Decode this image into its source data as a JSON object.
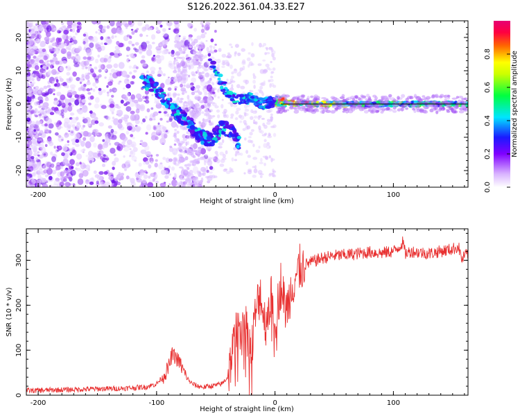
{
  "title": "S126.2022.361.04.33.E27",
  "chart_data": [
    {
      "type": "heatmap",
      "xlabel": "Height of straight line (km)",
      "ylabel": "Frequency (Hz)",
      "xlim": [
        -210,
        163
      ],
      "ylim": [
        -25,
        25
      ],
      "xticks": [
        -200,
        -100,
        0,
        100
      ],
      "yticks": [
        -20,
        -10,
        0,
        10,
        20
      ],
      "colorbar": {
        "label": "Normalized spectral amplitude",
        "range": [
          0,
          1
        ],
        "ticks": [
          "0.0",
          "0.2",
          "0.4",
          "0.6",
          "0.8"
        ],
        "colormap": [
          "#f5f5f5",
          "#cc99ff",
          "#7b00e0",
          "#1a1aff",
          "#00e5ff",
          "#00ff40",
          "#ffff00",
          "#ff6600",
          "#ff0040",
          "#e60073"
        ]
      },
      "signal_track": [
        {
          "x": -115,
          "f": 7
        },
        {
          "x": -105,
          "f": 6
        },
        {
          "x": -95,
          "f": 2
        },
        {
          "x": -85,
          "f": -2
        },
        {
          "x": -75,
          "f": -5
        },
        {
          "x": -65,
          "f": -9
        },
        {
          "x": -55,
          "f": -11
        },
        {
          "x": -45,
          "f": -7
        },
        {
          "x": -35,
          "f": -9
        },
        {
          "x": -30,
          "f": -12
        }
      ],
      "descending_track": [
        {
          "x": -55,
          "f": 13
        },
        {
          "x": -50,
          "f": 11
        },
        {
          "x": -45,
          "f": 6
        },
        {
          "x": -38,
          "f": 2
        },
        {
          "x": -30,
          "f": 1
        },
        {
          "x": -20,
          "f": 2
        },
        {
          "x": -10,
          "f": 0
        },
        {
          "x": 0,
          "f": 1
        },
        {
          "x": 10,
          "f": 0.5
        },
        {
          "x": 20,
          "f": 0
        },
        {
          "x": 163,
          "f": 0
        }
      ]
    },
    {
      "type": "line",
      "xlabel": "Height of straight line (km)",
      "ylabel": "SNR (10 * v/v)",
      "xlim": [
        -210,
        163
      ],
      "ylim": [
        0,
        370
      ],
      "xticks": [
        -200,
        -100,
        0,
        100
      ],
      "yticks": [
        0,
        100,
        200,
        300
      ],
      "color": "#e83030",
      "series": [
        {
          "x": [
            -210,
            -180,
            -150,
            -130,
            -110,
            -100,
            -95,
            -90,
            -87,
            -84,
            -80,
            -75,
            -70,
            -65,
            -60,
            -55,
            -50,
            -45,
            -40,
            -37,
            -35,
            -33,
            -30,
            -28,
            -25,
            -22,
            -20,
            -18,
            -15,
            -12,
            -10,
            -8,
            -5,
            -2,
            0,
            3,
            5,
            8,
            10,
            13,
            15,
            18,
            20,
            25,
            30,
            35,
            40,
            50,
            60,
            70,
            80,
            90,
            100,
            105,
            108,
            110,
            115,
            120,
            130,
            140,
            150,
            155,
            158,
            160,
            163
          ],
          "y": [
            10,
            12,
            14,
            15,
            18,
            25,
            40,
            60,
            90,
            85,
            70,
            40,
            25,
            20,
            18,
            20,
            22,
            25,
            40,
            80,
            110,
            130,
            150,
            170,
            160,
            120,
            90,
            150,
            200,
            230,
            180,
            160,
            200,
            220,
            170,
            210,
            250,
            200,
            190,
            230,
            250,
            270,
            280,
            290,
            295,
            300,
            305,
            310,
            312,
            315,
            318,
            316,
            320,
            330,
            340,
            315,
            320,
            318,
            315,
            320,
            325,
            330,
            300,
            310,
            315
          ]
        }
      ]
    }
  ]
}
